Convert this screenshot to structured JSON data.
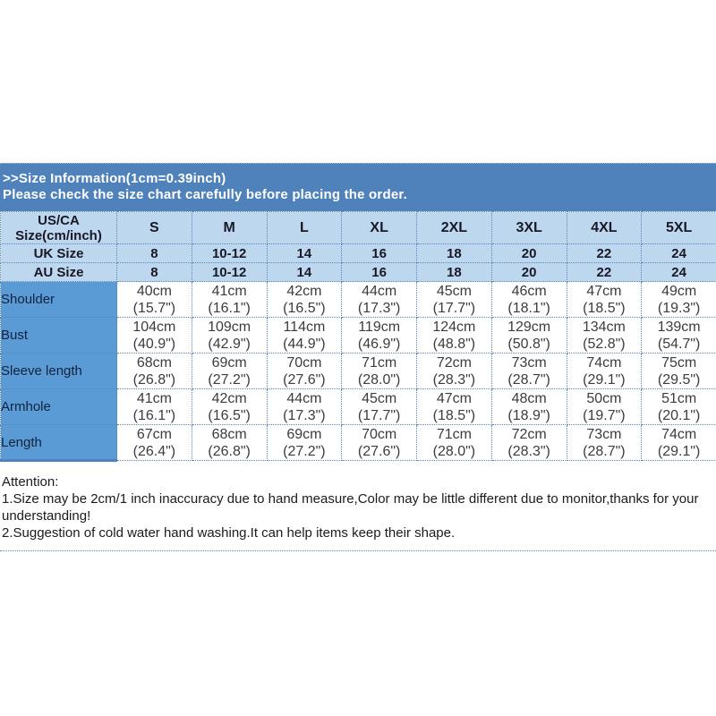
{
  "banner": {
    "line1": ">>Size Information(1cm=0.39inch)",
    "line2": "Please check the size chart carefully before placing the order.",
    "bg_color": "#4f81bb",
    "text_color": "#ffffff"
  },
  "size_chart": {
    "corner_header": "US/CA\nSize(cm/inch)",
    "size_columns": [
      "S",
      "M",
      "L",
      "XL",
      "2XL",
      "3XL",
      "4XL",
      "5XL"
    ],
    "region_rows": [
      {
        "label": "UK Size",
        "values": [
          "8",
          "10-12",
          "14",
          "16",
          "18",
          "20",
          "22",
          "24"
        ]
      },
      {
        "label": "AU Size",
        "values": [
          "8",
          "10-12",
          "14",
          "16",
          "18",
          "20",
          "22",
          "24"
        ]
      }
    ],
    "measurement_rows": [
      {
        "label": "Shoulder",
        "values": [
          "40cm\n(15.7\")",
          "41cm\n(16.1\")",
          "42cm\n(16.5\")",
          "44cm\n(17.3\")",
          "45cm\n(17.7\")",
          "46cm\n(18.1\")",
          "47cm\n(18.5\")",
          "49cm\n(19.3\")"
        ]
      },
      {
        "label": "Bust",
        "values": [
          "104cm\n(40.9\")",
          "109cm\n(42.9\")",
          "114cm\n(44.9\")",
          "119cm\n(46.9\")",
          "124cm\n(48.8\")",
          "129cm\n(50.8\")",
          "134cm\n(52.8\")",
          "139cm\n(54.7\")"
        ]
      },
      {
        "label": "Sleeve length",
        "values": [
          "68cm\n(26.8\")",
          "69cm\n(27.2\")",
          "70cm\n(27.6\")",
          "71cm\n(28.0\")",
          "72cm\n(28.3\")",
          "73cm\n(28.7\")",
          "74cm\n(29.1\")",
          "75cm\n(29.5\")"
        ]
      },
      {
        "label": "Armhole",
        "values": [
          "41cm\n(16.1\")",
          "42cm\n(16.5\")",
          "44cm\n(17.3\")",
          "45cm\n(17.7\")",
          "47cm\n(18.5\")",
          "48cm\n(18.9\")",
          "50cm\n(19.7\")",
          "51cm\n(20.1\")"
        ]
      },
      {
        "label": "Length",
        "values": [
          "67cm\n(26.4\")",
          "68cm\n(26.8\")",
          "69cm\n(27.2\")",
          "70cm\n(27.6\")",
          "71cm\n(28.0\")",
          "72cm\n(28.3\")",
          "73cm\n(28.7\")",
          "74cm\n(29.1\")"
        ]
      }
    ],
    "colors": {
      "banner_bg": "#4f81bb",
      "header_bg": "#bdd7ee",
      "label_column_bg": "#5b9bd5",
      "border": "#5b86b8"
    }
  },
  "attention": {
    "title": "Attention:",
    "lines": [
      "1.Size may be 2cm/1 inch inaccuracy due to hand measure,Color may be little different due to monitor,thanks for your",
      "understanding!",
      "2.Suggestion of cold water hand washing.It can help items keep their shape."
    ]
  }
}
